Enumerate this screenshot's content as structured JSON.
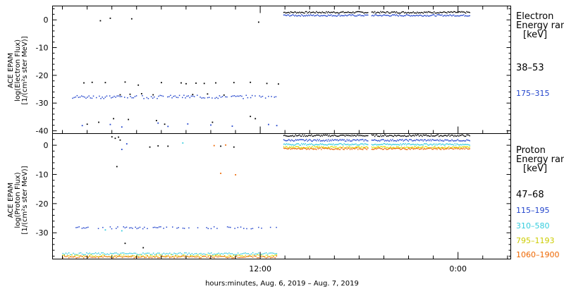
{
  "chart_data": [
    {
      "type": "scatter",
      "panel": "electron",
      "ylabel_lines": [
        "ACE EPAM",
        "log(Electron Flux)",
        "[1/(cm²s ster MeV)]"
      ],
      "ylim": [
        -41,
        5
      ],
      "yticks": [
        0,
        -10,
        -20,
        -30,
        -40
      ],
      "legend_title": [
        "Electron",
        "Energy ran",
        "[keV]"
      ],
      "series": [
        {
          "name": "38–53",
          "color": "#000000",
          "gap_points": [
            [
              2.3,
              -0.3
            ],
            [
              2.9,
              0.6
            ],
            [
              4.2,
              0.4
            ],
            [
              11.9,
              -0.8
            ],
            [
              1.3,
              -22.7
            ],
            [
              1.8,
              -22.5
            ],
            [
              2.6,
              -22.6
            ],
            [
              3.8,
              -22.4
            ],
            [
              4.6,
              -23.5
            ],
            [
              6.0,
              -22.6
            ],
            [
              7.2,
              -22.7
            ],
            [
              7.5,
              -23.0
            ],
            [
              8.1,
              -22.8
            ],
            [
              8.6,
              -22.9
            ],
            [
              9.3,
              -22.7
            ],
            [
              10.4,
              -22.6
            ],
            [
              11.4,
              -22.5
            ],
            [
              12.4,
              -22.9
            ],
            [
              13.1,
              -23.1
            ],
            [
              3.5,
              -27.0
            ],
            [
              4.1,
              -26.8
            ],
            [
              4.8,
              -26.6
            ],
            [
              5.5,
              -27.0
            ],
            [
              7.9,
              -26.9
            ],
            [
              8.8,
              -26.7
            ],
            [
              9.8,
              -27.1
            ],
            [
              3.1,
              -35.6
            ],
            [
              2.2,
              -36.9
            ],
            [
              4.0,
              -35.9
            ],
            [
              5.7,
              -36.3
            ],
            [
              11.7,
              -35.6
            ],
            [
              11.4,
              -34.8
            ],
            [
              1.5,
              -37.6
            ],
            [
              6.2,
              -37.6
            ],
            [
              9.1,
              -36.9
            ]
          ],
          "band": {
            "x_start": 13.4,
            "x_end": 24.7,
            "y": 2.7,
            "gaps": [
              18.6
            ]
          }
        },
        {
          "name": "175–315",
          "color": "#2244cc",
          "gap_points": [
            [
              1.2,
              -38.1
            ],
            [
              2.9,
              -37.7
            ],
            [
              3.6,
              -38.6
            ],
            [
              5.8,
              -37.2
            ],
            [
              6.4,
              -38.4
            ],
            [
              7.6,
              -37.5
            ],
            [
              9.0,
              -37.9
            ],
            [
              10.3,
              -38.3
            ],
            [
              12.5,
              -37.7
            ],
            [
              13.0,
              -38.1
            ]
          ],
          "band": {
            "x_start": 13.4,
            "x_end": 24.7,
            "y": 1.6,
            "gaps": [
              18.6
            ]
          },
          "gap_band": {
            "x_start": 0.5,
            "x_end": 13.0,
            "y": -27.8
          }
        }
      ]
    },
    {
      "type": "scatter",
      "panel": "proton",
      "ylabel_lines": [
        "ACE EPAM",
        "log(Proton Flux)",
        "[1/(cm²s ster MeV)]"
      ],
      "ylim": [
        -39,
        4
      ],
      "yticks": [
        0,
        -10,
        -20,
        -30
      ],
      "legend_title": [
        "Proton",
        "Energy ran",
        "[keV]"
      ],
      "series": [
        {
          "name": "47–68",
          "color": "#000000",
          "gap_points": [
            [
              3.0,
              2.9
            ],
            [
              3.2,
              2.4
            ],
            [
              3.4,
              2.8
            ],
            [
              3.5,
              1.8
            ],
            [
              3.3,
              -7.3
            ],
            [
              5.3,
              -0.6
            ],
            [
              5.8,
              -0.2
            ],
            [
              6.4,
              -0.3
            ],
            [
              9.6,
              -0.3
            ],
            [
              10.4,
              -0.6
            ],
            [
              4.9,
              -35.1
            ],
            [
              3.8,
              -33.6
            ]
          ],
          "band": {
            "x_start": 13.4,
            "x_end": 24.7,
            "y": 3.3,
            "gaps": [
              18.6
            ]
          }
        },
        {
          "name": "115–195",
          "color": "#2244cc",
          "gap_points": [
            [
              3.6,
              -1.4
            ],
            [
              3.9,
              0.5
            ]
          ],
          "gap_band": {
            "x_start": 0.8,
            "x_end": 13.0,
            "y": -28.3
          },
          "band": {
            "x_start": 13.4,
            "x_end": 24.7,
            "y": 1.7,
            "gaps": [
              18.6
            ]
          }
        },
        {
          "name": "310–580",
          "color": "#33ccdd",
          "gap_points": [
            [
              7.3,
              0.8
            ],
            [
              2.6,
              -29.0
            ],
            [
              3.6,
              -29.3
            ]
          ],
          "gap_band": {
            "x_start": 0.0,
            "x_end": 13.0,
            "y": -37.2
          },
          "band": {
            "x_start": 13.4,
            "x_end": 24.7,
            "y": 0.3,
            "gaps": [
              18.6
            ]
          }
        },
        {
          "name": "795–1193",
          "color": "#dddd00",
          "gap_band": {
            "x_start": 0.0,
            "x_end": 13.0,
            "y": -37.9
          },
          "band": {
            "x_start": 13.4,
            "x_end": 24.7,
            "y": -0.7,
            "gaps": [
              18.6
            ]
          }
        },
        {
          "name": "1060–1900",
          "color": "#ee6600",
          "gap_points": [
            [
              9.2,
              -0.1
            ],
            [
              9.9,
              0.1
            ],
            [
              9.6,
              -9.6
            ],
            [
              10.5,
              -10.1
            ]
          ],
          "gap_band": {
            "x_start": 0.0,
            "x_end": 13.0,
            "y": -38.3
          },
          "band": {
            "x_start": 13.4,
            "x_end": 24.7,
            "y": -1.2,
            "gaps": [
              18.6
            ]
          }
        }
      ]
    }
  ],
  "x_axis": {
    "unit": "hours since start of plot",
    "range": [
      -0.6,
      27.2
    ],
    "major_ticks": [
      {
        "x": 12,
        "label": "12:00"
      },
      {
        "x": 24,
        "label": "0:00"
      }
    ],
    "minor_step": 1.5,
    "xlabel": "hours:minutes, Aug.  6, 2019 – Aug.  7, 2019"
  }
}
